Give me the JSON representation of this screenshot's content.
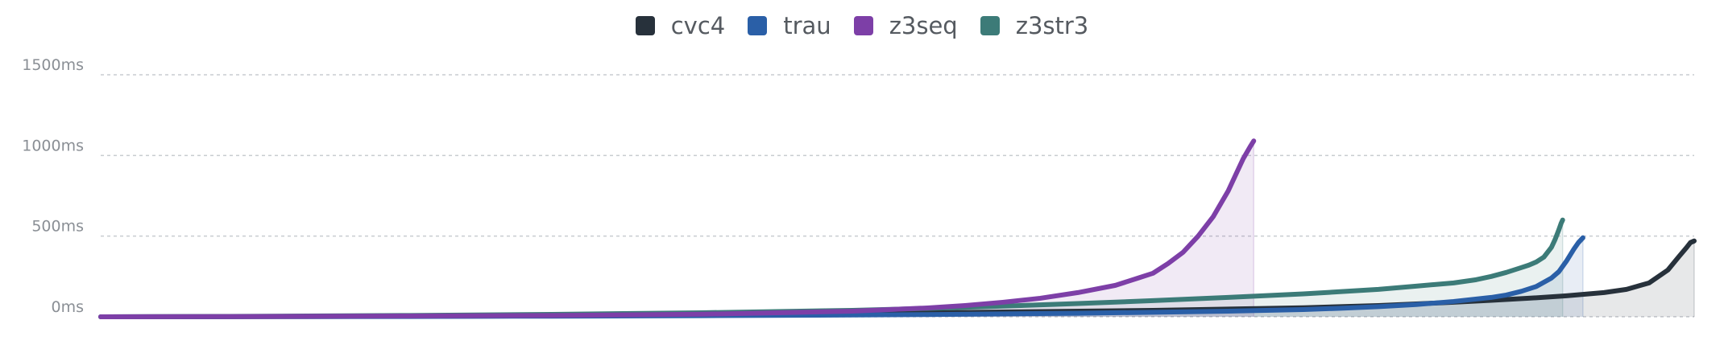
{
  "chart_data": {
    "type": "area",
    "ylabel": "",
    "xlabel": "",
    "y_ticks": [
      "0ms",
      "500ms",
      "1000ms",
      "1500ms"
    ],
    "ylim": [
      0,
      1500
    ],
    "grid": true,
    "legend_position": "top-center",
    "series": [
      {
        "name": "cvc4",
        "color": "#27313b",
        "points": [
          [
            0,
            0
          ],
          [
            200,
            1
          ],
          [
            400,
            3
          ],
          [
            600,
            6
          ],
          [
            800,
            12
          ],
          [
            1000,
            20
          ],
          [
            1200,
            30
          ],
          [
            1400,
            40
          ],
          [
            1600,
            56
          ],
          [
            1700,
            70
          ],
          [
            1750,
            80
          ],
          [
            1800,
            90
          ],
          [
            1850,
            102
          ],
          [
            1900,
            115
          ],
          [
            1950,
            130
          ],
          [
            2000,
            150
          ],
          [
            2030,
            170
          ],
          [
            2060,
            210
          ],
          [
            2085,
            290
          ],
          [
            2100,
            375
          ],
          [
            2110,
            430
          ],
          [
            2115,
            460
          ],
          [
            2120,
            470
          ]
        ]
      },
      {
        "name": "trau",
        "color": "#2a5fa7",
        "points": [
          [
            0,
            0
          ],
          [
            200,
            1
          ],
          [
            400,
            2
          ],
          [
            600,
            4
          ],
          [
            800,
            7
          ],
          [
            1000,
            11
          ],
          [
            1100,
            14
          ],
          [
            1200,
            18
          ],
          [
            1300,
            22
          ],
          [
            1400,
            28
          ],
          [
            1500,
            35
          ],
          [
            1600,
            45
          ],
          [
            1650,
            53
          ],
          [
            1700,
            63
          ],
          [
            1750,
            76
          ],
          [
            1800,
            95
          ],
          [
            1850,
            120
          ],
          [
            1870,
            135
          ],
          [
            1890,
            158
          ],
          [
            1910,
            188
          ],
          [
            1930,
            240
          ],
          [
            1940,
            280
          ],
          [
            1950,
            345
          ],
          [
            1960,
            420
          ],
          [
            1966,
            460
          ],
          [
            1970,
            480
          ],
          [
            1972,
            490
          ]
        ]
      },
      {
        "name": "z3seq",
        "color": "#7d3fa7",
        "points": [
          [
            0,
            0
          ],
          [
            200,
            2
          ],
          [
            400,
            5
          ],
          [
            600,
            8
          ],
          [
            700,
            12
          ],
          [
            800,
            16
          ],
          [
            900,
            25
          ],
          [
            1000,
            35
          ],
          [
            1100,
            55
          ],
          [
            1150,
            70
          ],
          [
            1200,
            90
          ],
          [
            1250,
            115
          ],
          [
            1300,
            150
          ],
          [
            1350,
            195
          ],
          [
            1380,
            240
          ],
          [
            1400,
            270
          ],
          [
            1420,
            330
          ],
          [
            1440,
            400
          ],
          [
            1460,
            500
          ],
          [
            1480,
            620
          ],
          [
            1500,
            780
          ],
          [
            1510,
            880
          ],
          [
            1520,
            980
          ],
          [
            1530,
            1060
          ],
          [
            1534,
            1090
          ]
        ]
      },
      {
        "name": "z3str3",
        "color": "#3c7b78",
        "points": [
          [
            0,
            0
          ],
          [
            200,
            3
          ],
          [
            400,
            8
          ],
          [
            600,
            15
          ],
          [
            800,
            25
          ],
          [
            1000,
            40
          ],
          [
            1100,
            52
          ],
          [
            1200,
            66
          ],
          [
            1300,
            82
          ],
          [
            1400,
            100
          ],
          [
            1500,
            120
          ],
          [
            1600,
            142
          ],
          [
            1700,
            170
          ],
          [
            1750,
            190
          ],
          [
            1800,
            210
          ],
          [
            1830,
            230
          ],
          [
            1850,
            250
          ],
          [
            1870,
            275
          ],
          [
            1890,
            305
          ],
          [
            1900,
            320
          ],
          [
            1910,
            340
          ],
          [
            1920,
            370
          ],
          [
            1930,
            430
          ],
          [
            1935,
            480
          ],
          [
            1940,
            540
          ],
          [
            1943,
            580
          ],
          [
            1945,
            600
          ]
        ]
      }
    ]
  },
  "legend": [
    {
      "label": "cvc4",
      "color": "#27313b"
    },
    {
      "label": "trau",
      "color": "#2a5fa7"
    },
    {
      "label": "z3seq",
      "color": "#7d3fa7"
    },
    {
      "label": "z3str3",
      "color": "#3c7b78"
    }
  ],
  "x_range": [
    0,
    2120
  ]
}
